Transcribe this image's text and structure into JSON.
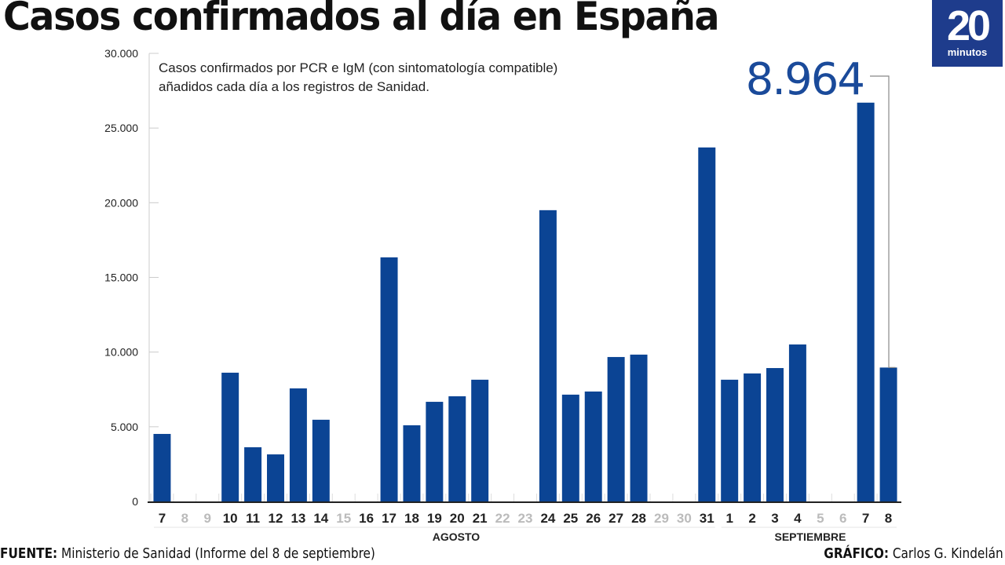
{
  "header": {
    "title": "Casos confirmados al día en España",
    "logo": {
      "number": "20",
      "word": "minutos",
      "color": "#1e3c8c"
    }
  },
  "footer": {
    "source_label": "FUENTE:",
    "source_text": " Ministerio de Sanidad (Informe del 8 de septiembre)",
    "credit_label": "GRÁFICO:",
    "credit_text": " Carlos G. Kindelán"
  },
  "chart_data": {
    "type": "bar",
    "title": "Casos confirmados al día en España",
    "subtitle": [
      "Casos confirmados por PCR e IgM (con sintomatología compatible)",
      "añadidos cada día a los registros de Sanidad."
    ],
    "xlabel": "",
    "ylabel": "",
    "ylim": [
      0,
      30000
    ],
    "yticks": [
      0,
      5000,
      10000,
      15000,
      20000,
      25000,
      30000
    ],
    "ytick_labels": [
      "0",
      "5.000",
      "10.000",
      "15.000",
      "20.000",
      "25.000",
      "30.000"
    ],
    "grid": false,
    "bar_color": "#0b4494",
    "categories": [
      "7",
      "8",
      "9",
      "10",
      "11",
      "12",
      "13",
      "14",
      "15",
      "16",
      "17",
      "18",
      "19",
      "20",
      "21",
      "22",
      "23",
      "24",
      "25",
      "26",
      "27",
      "28",
      "29",
      "30",
      "31",
      "1",
      "2",
      "3",
      "4",
      "5",
      "6",
      "7",
      "8"
    ],
    "weekend": [
      false,
      true,
      true,
      false,
      false,
      false,
      false,
      false,
      true,
      false,
      false,
      false,
      false,
      false,
      false,
      true,
      true,
      false,
      false,
      false,
      false,
      false,
      true,
      true,
      false,
      false,
      false,
      false,
      false,
      true,
      true,
      false,
      false
    ],
    "values": [
      4520,
      null,
      null,
      8620,
      3630,
      3150,
      7570,
      5470,
      null,
      null,
      16340,
      5100,
      6670,
      7040,
      8150,
      null,
      null,
      19500,
      7150,
      7360,
      9670,
      9830,
      null,
      null,
      23700,
      8150,
      8570,
      8930,
      10510,
      null,
      null,
      26700,
      8964
    ],
    "months": [
      {
        "label": "AGOSTO",
        "from_index": 0,
        "to_index": 24
      },
      {
        "label": "SEPTIEMBRE",
        "from_index": 25,
        "to_index": 32
      }
    ],
    "annotation": {
      "text": "8.964",
      "category_index": 32,
      "value": 8964,
      "color": "#1a4a9a"
    }
  }
}
